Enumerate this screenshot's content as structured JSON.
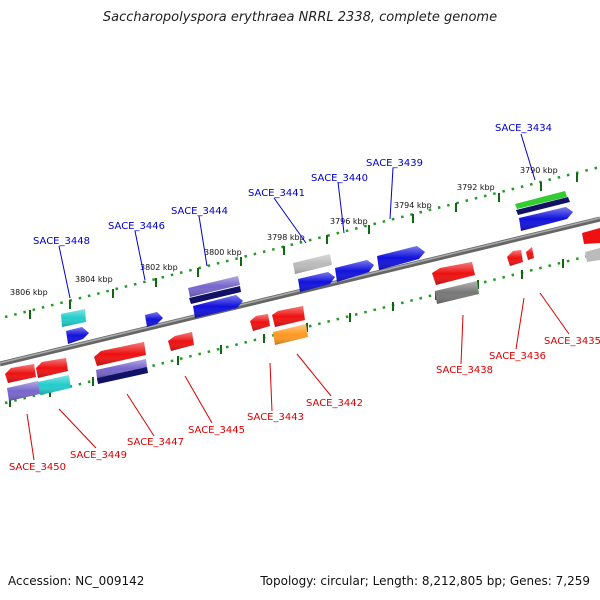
{
  "title": "Saccharopolyspora erythraea NRRL 2338, complete genome",
  "accession_text": "Accession: NC_009142",
  "summary_text": "Topology: circular; Length: 8,212,805 bp; Genes: 7,259",
  "colors": {
    "forward_label": "#0000cc",
    "reverse_label": "#dd0000",
    "red": "#ee1111",
    "blue": "#1111dd",
    "cyan": "#22cccc",
    "purple": "#7766cc",
    "navy": "#111166",
    "gray": "#777777",
    "lightgray": "#bbbbbb",
    "orange": "#ff9922",
    "green": "#33cc33",
    "backbone": "#888888",
    "tick": "#116611",
    "dot": "#229922"
  },
  "scale_ticks": [
    {
      "kbp": 3790,
      "label": "3790 kbp"
    },
    {
      "kbp": 3792,
      "label": "3792 kbp"
    },
    {
      "kbp": 3794,
      "label": "3794 kbp"
    },
    {
      "kbp": 3796,
      "label": "3796 kbp"
    },
    {
      "kbp": 3798,
      "label": "3798 kbp"
    },
    {
      "kbp": 3800,
      "label": "3800 kbp"
    },
    {
      "kbp": 3802,
      "label": "3802 kbp"
    },
    {
      "kbp": 3804,
      "label": "3804 kbp"
    },
    {
      "kbp": 3806,
      "label": "3806 kbp"
    }
  ],
  "genes_forward": [
    "SACE_3434",
    "SACE_3439",
    "SACE_3440",
    "SACE_3441",
    "SACE_3444",
    "SACE_3446",
    "SACE_3448"
  ],
  "genes_reverse": [
    "SACE_3435",
    "SACE_3436",
    "SACE_3438",
    "SACE_3442",
    "SACE_3443",
    "SACE_3445",
    "SACE_3447",
    "SACE_3449",
    "SACE_3450"
  ]
}
